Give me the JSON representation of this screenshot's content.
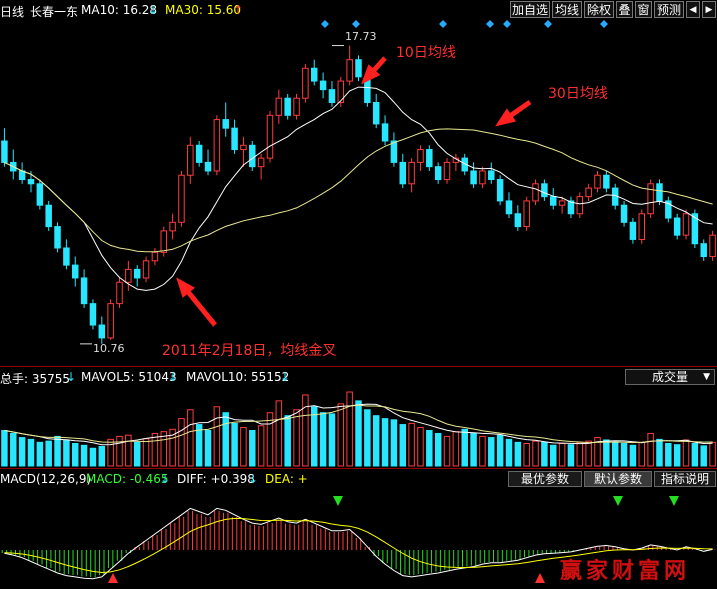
{
  "header": {
    "period": "日线",
    "stock_name": "长春一东",
    "ma10_label": "MA10: 16.28",
    "ma10_arrow": "↓",
    "ma30_label": "MA30: 15.60",
    "ma30_arrow": "↑",
    "buttons": [
      "加自选",
      "均线",
      "除权",
      "叠",
      "窗",
      "预测"
    ]
  },
  "price_chart": {
    "high_label": "17.73",
    "low_label": "10.76",
    "annotation_ma10": "10日均线",
    "annotation_ma30": "30日均线",
    "annotation_cross": "2011年2月18日，均线金叉"
  },
  "volume": {
    "label": "总手: 35755",
    "label_arrow": "↓",
    "mavol5": "MAVOL5: 51043",
    "mavol5_arrow": "↓",
    "mavol10": "MAVOL10: 55152",
    "mavol10_arrow": "↓",
    "dropdown": "成交量"
  },
  "macd": {
    "name": "MACD(12,26,9)",
    "macd_value": "MACD: -0.465",
    "macd_arrow": "↓",
    "diff_value": "DIFF: +0.398",
    "diff_arrow": "↓",
    "dea_value": "DEA: +",
    "buttons": [
      "最优参数",
      "默认参数",
      "指标说明"
    ],
    "active_button": "默认参数"
  },
  "watermark": "赢家财富网",
  "colors": {
    "up": "#ff3c3c",
    "down": "#29e6ff",
    "ma10": "#ffffff",
    "ma30": "#e8e890",
    "separator": "#8b0000"
  },
  "chart_data": {
    "type": "candlestick",
    "ylim": [
      10.5,
      18.0
    ],
    "candles": [
      [
        15.5,
        15.8,
        14.9,
        15.0
      ],
      [
        15.0,
        15.3,
        14.6,
        14.8
      ],
      [
        14.8,
        15.0,
        14.5,
        14.6
      ],
      [
        14.6,
        14.8,
        14.3,
        14.5
      ],
      [
        14.5,
        14.6,
        13.9,
        14.0
      ],
      [
        14.0,
        14.1,
        13.4,
        13.5
      ],
      [
        13.5,
        13.6,
        12.9,
        13.0
      ],
      [
        13.0,
        13.2,
        12.5,
        12.6
      ],
      [
        12.6,
        12.8,
        12.1,
        12.3
      ],
      [
        12.3,
        12.5,
        11.6,
        11.7
      ],
      [
        11.7,
        11.8,
        11.1,
        11.2
      ],
      [
        11.2,
        11.4,
        10.76,
        10.9
      ],
      [
        10.9,
        11.8,
        10.85,
        11.7
      ],
      [
        11.7,
        12.3,
        11.6,
        12.2
      ],
      [
        12.2,
        12.7,
        12.0,
        12.5
      ],
      [
        12.5,
        12.6,
        12.1,
        12.3
      ],
      [
        12.3,
        12.8,
        12.2,
        12.7
      ],
      [
        12.7,
        13.0,
        12.6,
        12.9
      ],
      [
        12.9,
        13.5,
        12.8,
        13.4
      ],
      [
        13.4,
        13.8,
        13.2,
        13.6
      ],
      [
        13.6,
        14.8,
        13.5,
        14.7
      ],
      [
        14.7,
        15.6,
        14.5,
        15.4
      ],
      [
        15.4,
        15.5,
        14.9,
        15.0
      ],
      [
        15.0,
        15.3,
        14.7,
        14.8
      ],
      [
        14.8,
        16.1,
        14.7,
        16.0
      ],
      [
        16.0,
        16.4,
        15.6,
        15.8
      ],
      [
        15.8,
        16.0,
        15.2,
        15.3
      ],
      [
        15.3,
        15.6,
        14.9,
        15.4
      ],
      [
        15.4,
        15.5,
        14.8,
        14.9
      ],
      [
        14.9,
        15.2,
        14.6,
        15.1
      ],
      [
        15.1,
        16.2,
        15.0,
        16.1
      ],
      [
        16.1,
        16.7,
        15.9,
        16.5
      ],
      [
        16.5,
        16.6,
        16.0,
        16.1
      ],
      [
        16.1,
        16.6,
        16.0,
        16.5
      ],
      [
        16.5,
        17.3,
        16.4,
        17.2
      ],
      [
        17.2,
        17.4,
        16.8,
        16.9
      ],
      [
        16.9,
        17.1,
        16.5,
        16.7
      ],
      [
        16.7,
        16.9,
        16.3,
        16.4
      ],
      [
        16.4,
        17.0,
        16.3,
        16.9
      ],
      [
        16.9,
        17.73,
        16.8,
        17.4
      ],
      [
        17.4,
        17.5,
        16.9,
        17.0
      ],
      [
        17.0,
        17.1,
        16.3,
        16.4
      ],
      [
        16.4,
        16.6,
        15.8,
        15.9
      ],
      [
        15.9,
        16.1,
        15.4,
        15.5
      ],
      [
        15.5,
        15.7,
        14.9,
        15.0
      ],
      [
        15.0,
        15.2,
        14.4,
        14.5
      ],
      [
        14.5,
        15.1,
        14.3,
        15.0
      ],
      [
        15.0,
        15.4,
        14.8,
        15.3
      ],
      [
        15.3,
        15.4,
        14.8,
        14.9
      ],
      [
        14.9,
        15.0,
        14.5,
        14.6
      ],
      [
        14.6,
        15.1,
        14.5,
        15.0
      ],
      [
        15.0,
        15.2,
        14.8,
        15.1
      ],
      [
        15.1,
        15.2,
        14.7,
        14.8
      ],
      [
        14.8,
        15.0,
        14.4,
        14.5
      ],
      [
        14.5,
        14.9,
        14.4,
        14.8
      ],
      [
        14.8,
        15.0,
        14.5,
        14.6
      ],
      [
        14.6,
        14.7,
        14.0,
        14.1
      ],
      [
        14.1,
        14.3,
        13.7,
        13.8
      ],
      [
        13.8,
        14.0,
        13.4,
        13.5
      ],
      [
        13.5,
        14.2,
        13.4,
        14.1
      ],
      [
        14.1,
        14.6,
        14.0,
        14.5
      ],
      [
        14.5,
        14.6,
        14.1,
        14.2
      ],
      [
        14.2,
        14.4,
        13.9,
        14.0
      ],
      [
        14.0,
        14.2,
        13.8,
        14.1
      ],
      [
        14.1,
        14.2,
        13.7,
        13.8
      ],
      [
        13.8,
        14.3,
        13.7,
        14.2
      ],
      [
        14.2,
        14.5,
        14.1,
        14.4
      ],
      [
        14.4,
        14.8,
        14.3,
        14.7
      ],
      [
        14.7,
        14.8,
        14.3,
        14.4
      ],
      [
        14.4,
        14.5,
        13.9,
        14.0
      ],
      [
        14.0,
        14.1,
        13.5,
        13.6
      ],
      [
        13.6,
        13.7,
        13.1,
        13.2
      ],
      [
        13.2,
        13.9,
        13.1,
        13.8
      ],
      [
        13.8,
        14.6,
        13.7,
        14.5
      ],
      [
        14.5,
        14.6,
        14.0,
        14.1
      ],
      [
        14.1,
        14.2,
        13.6,
        13.7
      ],
      [
        13.7,
        13.8,
        13.2,
        13.3
      ],
      [
        13.3,
        13.9,
        13.2,
        13.8
      ],
      [
        13.8,
        13.9,
        13.0,
        13.1
      ],
      [
        13.1,
        13.2,
        12.7,
        12.8
      ],
      [
        12.8,
        13.4,
        12.7,
        13.3
      ]
    ],
    "volume": [
      60,
      55,
      48,
      45,
      40,
      42,
      50,
      44,
      38,
      35,
      30,
      33,
      45,
      50,
      52,
      40,
      46,
      55,
      58,
      62,
      80,
      95,
      70,
      60,
      100,
      90,
      72,
      65,
      60,
      68,
      90,
      110,
      85,
      95,
      120,
      100,
      90,
      88,
      105,
      125,
      110,
      95,
      85,
      80,
      78,
      70,
      72,
      65,
      60,
      55,
      50,
      58,
      62,
      55,
      50,
      48,
      52,
      45,
      40,
      38,
      42,
      40,
      35,
      38,
      36,
      40,
      42,
      48,
      44,
      40,
      38,
      35,
      40,
      55,
      45,
      38,
      36,
      44,
      38,
      34,
      40
    ],
    "macd_hist": [
      -0.05,
      -0.08,
      -0.12,
      -0.18,
      -0.24,
      -0.3,
      -0.36,
      -0.4,
      -0.42,
      -0.44,
      -0.45,
      -0.42,
      -0.3,
      -0.18,
      -0.05,
      0.05,
      0.15,
      0.25,
      0.35,
      0.45,
      0.55,
      0.65,
      0.6,
      0.55,
      0.65,
      0.62,
      0.55,
      0.48,
      0.42,
      0.4,
      0.45,
      0.5,
      0.44,
      0.42,
      0.48,
      0.42,
      0.36,
      0.3,
      0.3,
      0.32,
      0.2,
      0.05,
      -0.1,
      -0.22,
      -0.32,
      -0.4,
      -0.42,
      -0.4,
      -0.38,
      -0.36,
      -0.33,
      -0.3,
      -0.28,
      -0.26,
      -0.22,
      -0.2,
      -0.2,
      -0.18,
      -0.16,
      -0.12,
      -0.08,
      -0.06,
      -0.05,
      -0.04,
      -0.03,
      0.0,
      0.03,
      0.06,
      0.07,
      0.05,
      0.02,
      0.0,
      0.03,
      0.08,
      0.06,
      0.03,
      0.0,
      0.05,
      0.02,
      -0.02,
      0.01
    ]
  }
}
